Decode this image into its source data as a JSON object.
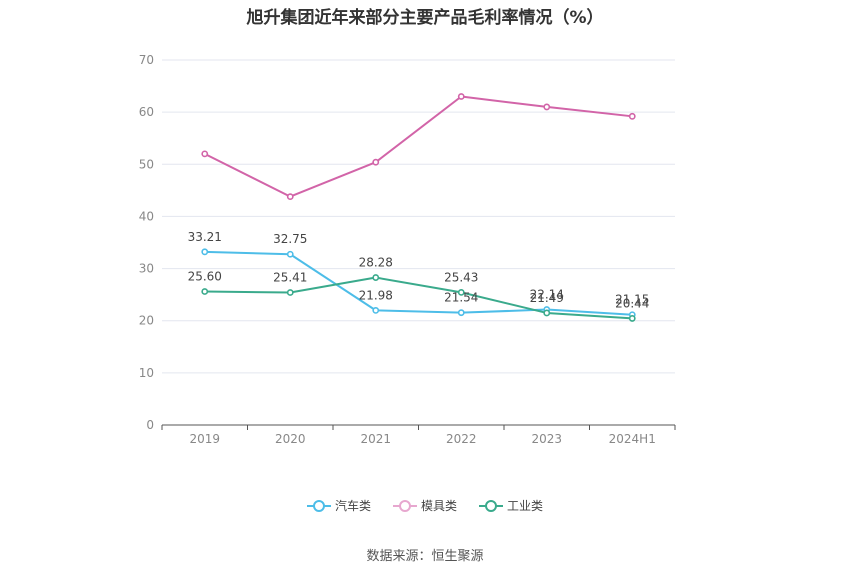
{
  "chart_data": {
    "type": "line",
    "title": "旭升集团近年来部分主要产品毛利率情况（%）",
    "categories": [
      "2019",
      "2020",
      "2021",
      "2022",
      "2023",
      "2024H1"
    ],
    "ylim": [
      0,
      70
    ],
    "yticks": [
      0,
      10,
      20,
      30,
      40,
      50,
      60,
      70
    ],
    "grid": true,
    "legend_position": "bottom-center",
    "series": [
      {
        "name": "汽车类",
        "color": "#4dbde8",
        "values": [
          33.21,
          32.75,
          21.98,
          21.54,
          22.14,
          21.15
        ],
        "labels": [
          "33.21",
          "32.75",
          "21.98",
          "21.54",
          "22.14",
          "21.15"
        ],
        "show_labels": true
      },
      {
        "name": "模具类",
        "color": "#d264a8",
        "values": [
          52.0,
          43.8,
          50.4,
          63.0,
          61.0,
          59.2
        ],
        "labels": [
          "",
          "",
          "",
          "",
          "",
          ""
        ],
        "show_labels": false
      },
      {
        "name": "工业类",
        "color": "#3aaa8c",
        "values": [
          25.6,
          25.41,
          28.28,
          25.43,
          21.49,
          20.44
        ],
        "labels": [
          "25.60",
          "25.41",
          "28.28",
          "25.43",
          "21.49",
          "20.44"
        ],
        "show_labels": true
      }
    ],
    "source": "数据来源：恒生聚源"
  }
}
